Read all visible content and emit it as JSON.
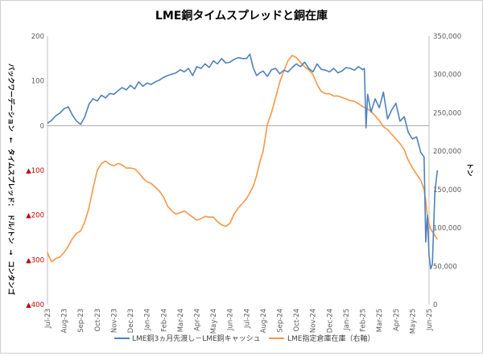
{
  "chart_data": {
    "type": "line",
    "title": "LME銅タイムスプレッドと銅在庫",
    "ylabel_left_parts": [
      "バックワーデーション",
      "←",
      "タイムスプレッド：",
      "ドル/トン",
      "→",
      "コンタンゴ"
    ],
    "ylabel_right": "トン",
    "xlabel": "",
    "x_tick_labels": [
      "Jul-23",
      "Aug-23",
      "Sep-23",
      "Oct-23",
      "Nov-23",
      "Dec-23",
      "Jan-24",
      "Feb-24",
      "Mar-24",
      "Apr-24",
      "May-24",
      "Jun-24",
      "Jul-24",
      "Aug-24",
      "Sep-24",
      "Oct-24",
      "Nov-24",
      "Dec-24",
      "Jan-25",
      "Feb-25",
      "Mar-25",
      "Apr-25",
      "May-25",
      "Jun-25"
    ],
    "y_left": {
      "ylim": [
        -400,
        200
      ],
      "tick_values": [
        200,
        100,
        0,
        -100,
        -200,
        -300,
        -400
      ],
      "tick_labels": [
        "200",
        "100",
        "0",
        "▲100",
        "▲200",
        "▲300",
        "▲400"
      ],
      "negative_color": "#c00000"
    },
    "y_right": {
      "ylim": [
        0,
        350000
      ],
      "tick_values": [
        350000,
        300000,
        250000,
        200000,
        150000,
        100000,
        50000,
        0
      ],
      "tick_labels": [
        "350,000",
        "300,000",
        "250,000",
        "200,000",
        "150,000",
        "100,000",
        "50,000",
        "0"
      ]
    },
    "series": [
      {
        "name": "LME銅3ヵ月先渡し－LME銅キャッシュ",
        "axis": "left",
        "color": "#4f81bd",
        "x": [
          0,
          0.1,
          0.25,
          0.5,
          0.75,
          1,
          1.25,
          1.5,
          1.75,
          2,
          2.25,
          2.5,
          2.75,
          3,
          3.25,
          3.5,
          3.75,
          4,
          4.25,
          4.5,
          4.75,
          5,
          5.25,
          5.5,
          5.75,
          6,
          6.25,
          6.5,
          6.75,
          7,
          7.25,
          7.5,
          7.75,
          8,
          8.25,
          8.5,
          8.75,
          9,
          9.25,
          9.5,
          9.75,
          10,
          10.25,
          10.5,
          10.75,
          11,
          11.25,
          11.5,
          11.75,
          12,
          12.2,
          12.4,
          12.6,
          12.8,
          13,
          13.25,
          13.5,
          13.75,
          14,
          14.25,
          14.5,
          14.75,
          15,
          15.25,
          15.5,
          15.75,
          16,
          16.25,
          16.5,
          16.75,
          17,
          17.25,
          17.5,
          17.75,
          18,
          18.25,
          18.5,
          18.75,
          19,
          19.1,
          19.2,
          19.3,
          19.5,
          19.75,
          20,
          20.25,
          20.5,
          20.75,
          21,
          21.25,
          21.5,
          21.75,
          22,
          22.25,
          22.5,
          22.7,
          22.8,
          22.9,
          23,
          23.1,
          23.2,
          23.35,
          23.5
        ],
        "y": [
          5,
          8,
          12,
          22,
          28,
          38,
          42,
          24,
          10,
          3,
          20,
          48,
          60,
          55,
          68,
          62,
          72,
          70,
          78,
          85,
          80,
          90,
          82,
          98,
          88,
          95,
          92,
          98,
          102,
          108,
          112,
          115,
          118,
          125,
          120,
          128,
          112,
          132,
          128,
          138,
          130,
          145,
          138,
          150,
          140,
          142,
          148,
          152,
          150,
          150,
          160,
          130,
          112,
          118,
          122,
          110,
          125,
          128,
          116,
          124,
          120,
          130,
          138,
          132,
          142,
          128,
          120,
          138,
          126,
          124,
          120,
          128,
          118,
          122,
          130,
          128,
          124,
          132,
          125,
          128,
          -5,
          70,
          30,
          60,
          40,
          75,
          15,
          35,
          50,
          10,
          20,
          -15,
          -30,
          -25,
          -60,
          -70,
          -260,
          -200,
          -290,
          -320,
          -310,
          -150,
          -100
        ],
        "tick_start_label": "Jul-23"
      },
      {
        "name": "LME指定倉庫在庫（右軸）",
        "axis": "right",
        "color": "#f79646",
        "x": [
          0,
          0.1,
          0.25,
          0.5,
          0.75,
          1,
          1.25,
          1.5,
          1.75,
          2,
          2.25,
          2.5,
          2.75,
          3,
          3.25,
          3.5,
          3.75,
          4,
          4.25,
          4.5,
          4.75,
          5,
          5.25,
          5.5,
          5.75,
          6,
          6.25,
          6.5,
          6.75,
          7,
          7.25,
          7.5,
          7.75,
          8,
          8.25,
          8.5,
          8.75,
          9,
          9.25,
          9.5,
          9.75,
          10,
          10.25,
          10.5,
          10.75,
          11,
          11.25,
          11.5,
          11.75,
          12,
          12.2,
          12.4,
          12.6,
          12.8,
          13,
          13.25,
          13.5,
          13.75,
          14,
          14.25,
          14.5,
          14.75,
          15,
          15.25,
          15.5,
          15.75,
          16,
          16.25,
          16.5,
          16.75,
          17,
          17.25,
          17.5,
          17.75,
          18,
          18.25,
          18.5,
          18.75,
          19,
          19.1,
          19.2,
          19.3,
          19.5,
          19.75,
          20,
          20.25,
          20.5,
          20.75,
          21,
          21.25,
          21.5,
          21.75,
          22,
          22.25,
          22.5,
          22.7,
          22.8,
          22.9,
          23,
          23.1,
          23.2,
          23.35,
          23.5
        ],
        "y": [
          68000,
          62000,
          56000,
          60000,
          62000,
          68000,
          76000,
          86000,
          93000,
          96000,
          108000,
          126000,
          152000,
          175000,
          184000,
          187000,
          183000,
          181000,
          184000,
          182000,
          178000,
          178000,
          177000,
          172000,
          165000,
          160000,
          158000,
          153000,
          148000,
          140000,
          128000,
          122000,
          118000,
          120000,
          122000,
          118000,
          114000,
          110000,
          112000,
          115000,
          114000,
          114000,
          108000,
          104000,
          102000,
          106000,
          118000,
          126000,
          132000,
          138000,
          146000,
          154000,
          168000,
          186000,
          200000,
          235000,
          250000,
          270000,
          290000,
          305000,
          318000,
          325000,
          322000,
          316000,
          310000,
          306000,
          300000,
          287000,
          278000,
          275000,
          275000,
          272000,
          272000,
          270000,
          268000,
          266000,
          265000,
          262000,
          258000,
          257000,
          256000,
          255000,
          252000,
          246000,
          240000,
          232000,
          228000,
          222000,
          216000,
          210000,
          202000,
          188000,
          178000,
          170000,
          162000,
          150000,
          135000,
          115000,
          105000,
          98000,
          95000,
          90000,
          85000
        ],
        "tick_start_label": "Jul-23"
      }
    ],
    "grid": false,
    "zero_line": true,
    "legend_position": "bottom"
  }
}
